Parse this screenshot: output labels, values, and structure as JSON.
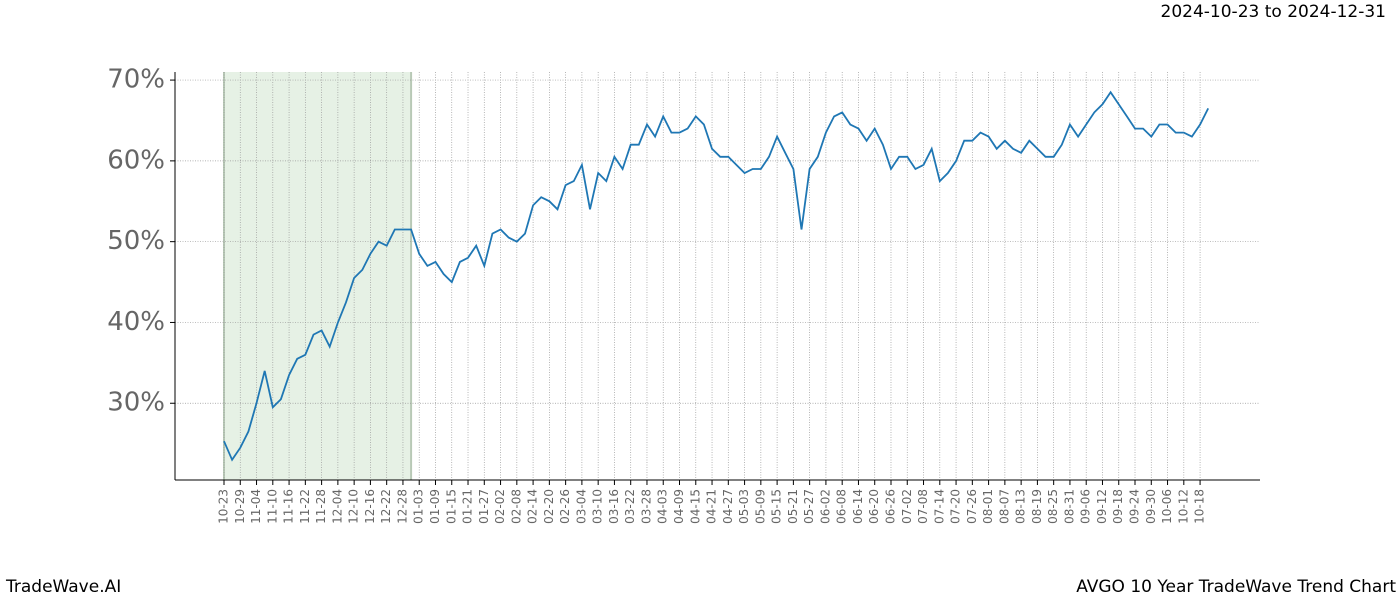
{
  "chart_data": {
    "type": "line",
    "title": "2024-10-23 to 2024-12-31",
    "footer_left": "TradeWave.AI",
    "footer_right": "AVGO 10 Year TradeWave Trend Chart",
    "categories": [
      "10-23",
      null,
      "10-29",
      null,
      "11-04",
      null,
      "11-10",
      null,
      "11-16",
      null,
      "11-22",
      null,
      "11-28",
      null,
      "12-04",
      null,
      "12-10",
      null,
      "12-16",
      null,
      "12-22",
      null,
      "12-28",
      null,
      "01-03",
      null,
      "01-09",
      null,
      "01-15",
      null,
      "01-21",
      null,
      "01-27",
      null,
      "02-02",
      null,
      "02-08",
      null,
      "02-14",
      null,
      "02-20",
      null,
      "02-26",
      null,
      "03-04",
      null,
      "03-10",
      null,
      "03-16",
      null,
      "03-22",
      null,
      "03-28",
      null,
      "04-03",
      null,
      "04-09",
      null,
      "04-15",
      null,
      "04-21",
      null,
      "04-27",
      null,
      "05-03",
      null,
      "05-09",
      null,
      "05-15",
      null,
      "05-21",
      null,
      "05-27",
      null,
      "06-02",
      null,
      "06-08",
      null,
      "06-14",
      null,
      "06-20",
      null,
      "06-26",
      null,
      "07-02",
      null,
      "07-08",
      null,
      "07-14",
      null,
      "07-20",
      null,
      "07-26",
      null,
      "08-01",
      null,
      "08-07",
      null,
      "08-13",
      null,
      "08-19",
      null,
      "08-25",
      null,
      "08-31",
      null,
      "09-06",
      null,
      "09-12",
      null,
      "09-18",
      null,
      "09-24",
      null,
      "09-30",
      null,
      "10-06",
      null,
      "10-12",
      null,
      "10-18",
      null
    ],
    "series": [
      {
        "name": "AVGO",
        "color": "#1f77b4",
        "values": [
          25.3,
          23,
          24.5,
          26.5,
          30,
          34,
          29.5,
          30.5,
          33.5,
          35.5,
          36,
          38.5,
          39,
          37,
          40,
          42.5,
          45.5,
          46.5,
          48.5,
          50,
          49.5,
          51.5,
          51.5,
          51.5,
          48.5,
          47,
          47.5,
          46,
          45,
          47.5,
          48,
          49.5,
          47,
          51,
          51.5,
          50.5,
          50,
          51,
          54.5,
          55.5,
          55,
          54,
          57,
          57.5,
          59.5,
          54,
          58.5,
          57.5,
          60.5,
          59,
          62,
          62,
          64.5,
          63,
          65.5,
          63.5,
          63.5,
          64,
          65.5,
          64.5,
          61.5,
          60.5,
          60.5,
          59.5,
          58.5,
          59,
          59,
          60.5,
          63,
          61,
          59,
          51.5,
          59,
          60.5,
          63.5,
          65.5,
          66,
          64.5,
          64,
          62.5,
          64,
          62,
          59,
          60.5,
          60.5,
          59,
          59.5,
          61.5,
          57.5,
          58.5,
          60,
          62.5,
          62.5,
          63.5,
          63,
          61.5,
          62.5,
          61.5,
          61,
          62.5,
          61.5,
          60.5,
          60.5,
          62,
          64.5,
          63,
          64.5,
          66,
          67,
          68.5,
          67,
          65.5,
          64,
          64,
          63,
          64.5,
          64.5,
          63.5,
          63.5,
          63,
          64.5,
          66.5
        ]
      }
    ],
    "ylim": [
      20.5,
      71
    ],
    "yticks": [
      {
        "value": 30,
        "label": "30%"
      },
      {
        "value": 40,
        "label": "40%"
      },
      {
        "value": 50,
        "label": "50%"
      },
      {
        "value": 60,
        "label": "60%"
      },
      {
        "value": 70,
        "label": "70%"
      }
    ],
    "grid": true,
    "highlight_color": "#d5e8d4"
  }
}
